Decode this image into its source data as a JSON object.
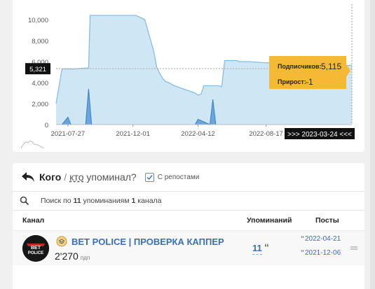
{
  "chart_data": {
    "type": "area",
    "y_ticks": [
      "0",
      "2,000",
      "4,000",
      "6,000",
      "8,000",
      "10,000"
    ],
    "ylim": [
      0,
      11200
    ],
    "x_ticks": [
      "2021-07-27",
      "2021-12-01",
      "2022-04-12",
      "2022-08-17"
    ],
    "cursor_label": ">>> 2023-03-24 <<<",
    "y_marker_label": "5,321",
    "y_marker_value": 5321,
    "grid": false,
    "series": [
      {
        "values_x": [
          0,
          0.02,
          0.06,
          0.11,
          0.115,
          0.14,
          0.16,
          0.27,
          0.3,
          0.32,
          0.33,
          0.34,
          0.35,
          0.36,
          0.37,
          0.38,
          0.4,
          0.42,
          0.43,
          0.45,
          0.47,
          0.48,
          0.49,
          0.5,
          0.52,
          0.55,
          0.56,
          0.57,
          0.6,
          0.61,
          0.62,
          0.63,
          0.64,
          0.65,
          0.7,
          0.8,
          0.9,
          0.95,
          0.97,
          1
        ],
        "values_y": [
          2000,
          5300,
          5300,
          5400,
          10400,
          10400,
          10400,
          10400,
          10000,
          8000,
          7000,
          5500,
          4900,
          4400,
          4100,
          4000,
          3700,
          3500,
          3400,
          3200,
          3000,
          2800,
          2900,
          3700,
          3700,
          3700,
          3600,
          6100,
          6100,
          6100,
          6000,
          6000,
          6000,
          6000,
          5900,
          5800,
          5700,
          5700,
          5600,
          5650
        ]
      },
      {
        "values_x": [
          0.02,
          0.04,
          0.05,
          0.1,
          0.11,
          0.12,
          0.15,
          0.47,
          0.48,
          0.52,
          0.53,
          0.54
        ],
        "values_y": [
          0,
          700,
          0,
          0,
          3400,
          0,
          0,
          0,
          500,
          0,
          2400,
          0
        ]
      }
    ],
    "tooltip": {
      "subscribers_label": "Подписчиков:",
      "subscribers_value": "5,115",
      "growth_label": "Прирост:",
      "growth_value": "-1"
    }
  },
  "mentions": {
    "who_label": "Кого",
    "slash": "/",
    "whom_prefix": "кто",
    "whom_suffix": " упоминал?",
    "reposts_label": "С репостами",
    "search_text_before": "Поиск по ",
    "search_count": "11",
    "search_text_mid": " упоминаниям ",
    "search_channels": "1",
    "search_text_after": " канала",
    "col_channel": "Канал",
    "col_mentions": "Упоминаний",
    "col_posts": "Посты",
    "rows": [
      {
        "name": "BET POLICE | ПРОВЕРКА КАППЕР",
        "subscribers": "2'270",
        "subscribers_unit": "пдп",
        "mentions": "11",
        "post_dates": [
          "2022-04-21",
          "2021-12-06"
        ],
        "avatar_text_top": "BET",
        "avatar_text_bottom": "POLICE"
      }
    ]
  },
  "colors": {
    "accent": "#3a6fb5",
    "area_fill": "#cfe6f5",
    "line": "#87bde3",
    "tooltip": "#f4b935"
  }
}
